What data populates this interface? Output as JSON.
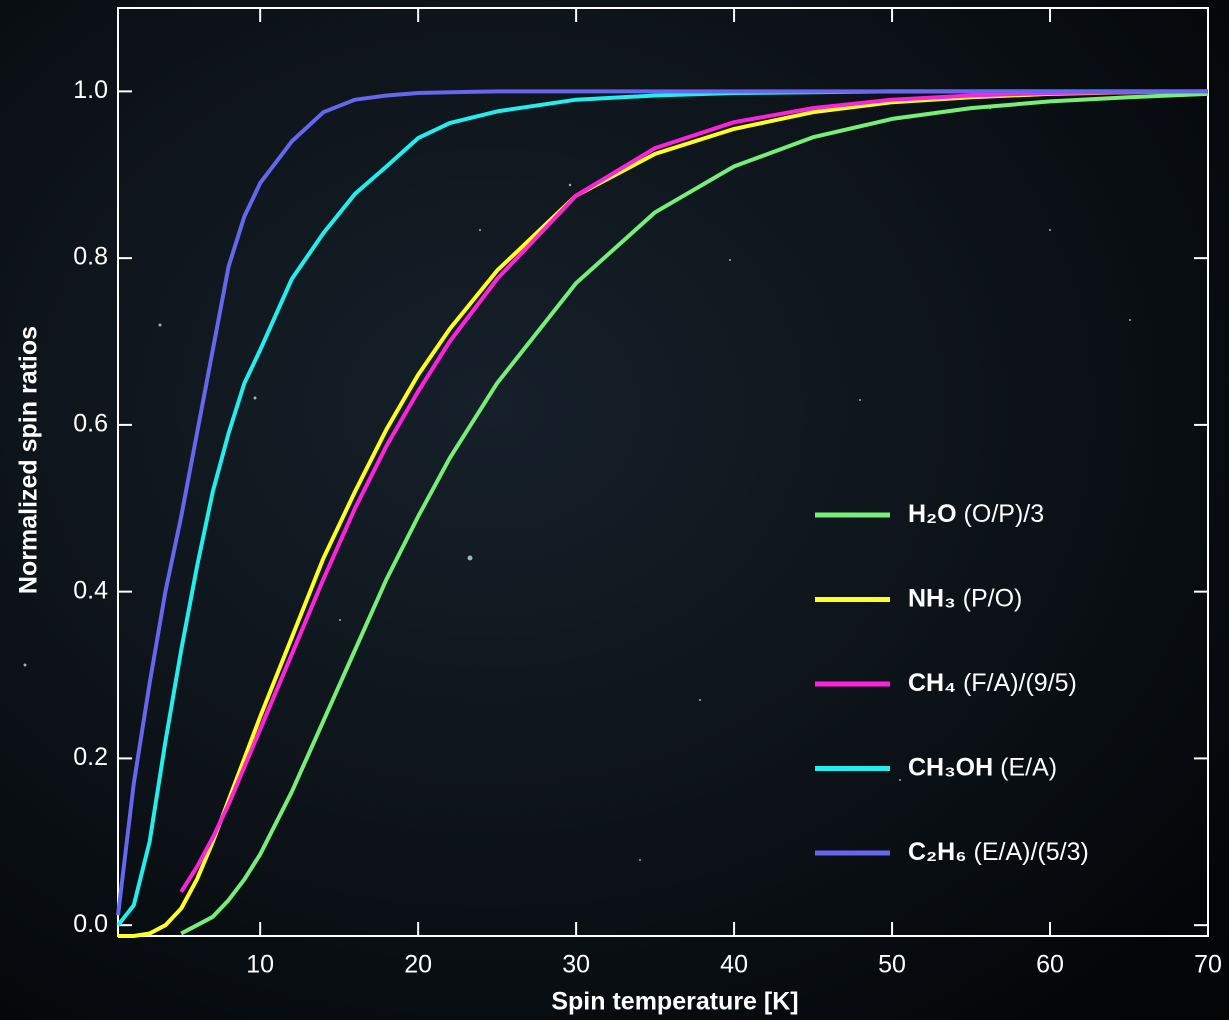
{
  "chart_data": {
    "type": "line",
    "xlabel": "Spin temperature [K]",
    "ylabel": "Normalized spin ratios",
    "x": [
      1,
      2,
      3,
      4,
      5,
      6,
      7,
      8,
      9,
      10,
      12,
      14,
      16,
      18,
      20,
      22,
      25,
      30,
      35,
      40,
      45,
      50,
      55,
      60,
      65,
      70
    ],
    "series": [
      {
        "name": "H₂O (O/P)/3",
        "color": "#77ee77",
        "values": [
          null,
          null,
          null,
          null,
          -0.01,
          0.0,
          0.01,
          0.03,
          0.055,
          0.085,
          0.16,
          0.245,
          0.33,
          0.415,
          0.49,
          0.56,
          0.65,
          0.77,
          0.855,
          0.91,
          0.945,
          0.967,
          0.98,
          0.988,
          0.993,
          0.997
        ]
      },
      {
        "name": "NH₃ (P/O)",
        "color": "#ffff22",
        "values": [
          -0.013,
          -0.013,
          -0.01,
          0.0,
          0.02,
          0.055,
          0.1,
          0.15,
          0.2,
          0.25,
          0.345,
          0.44,
          0.52,
          0.595,
          0.66,
          0.715,
          0.785,
          0.875,
          0.925,
          0.955,
          0.975,
          0.987,
          0.993,
          0.997,
          0.999,
          1.0
        ]
      },
      {
        "name": "CH₄ (F/A)/(9/5)",
        "color": "#ff22dd",
        "values": [
          null,
          null,
          null,
          null,
          0.04,
          0.07,
          0.105,
          0.145,
          0.19,
          0.235,
          0.325,
          0.415,
          0.5,
          0.575,
          0.64,
          0.7,
          0.775,
          0.875,
          0.932,
          0.963,
          0.98,
          0.99,
          0.995,
          0.998,
          0.999,
          1.0
        ]
      },
      {
        "name": "CH₃OH (E/A)",
        "color": "#22eeee",
        "values": [
          0.0,
          0.024,
          0.1,
          0.22,
          0.33,
          0.43,
          0.52,
          0.59,
          0.65,
          0.69,
          0.775,
          0.83,
          0.877,
          0.91,
          0.944,
          0.962,
          0.976,
          0.99,
          0.995,
          0.998,
          0.999,
          1.0,
          1.0,
          1.0,
          1.0,
          1.0
        ]
      },
      {
        "name": "C₂H₆ (E/A)/(5/3)",
        "color": "#6666ee",
        "values": [
          0.012,
          0.17,
          0.29,
          0.4,
          0.49,
          0.59,
          0.69,
          0.79,
          0.85,
          0.89,
          0.94,
          0.975,
          0.99,
          0.995,
          0.998,
          0.999,
          1.0,
          1.0,
          1.0,
          1.0,
          1.0,
          1.0,
          1.0,
          1.0,
          1.0,
          1.0
        ]
      }
    ],
    "xlim": [
      1,
      70
    ],
    "xticks": [
      10,
      20,
      30,
      40,
      50,
      60,
      70
    ],
    "ylim": [
      -0.013,
      1.1
    ],
    "yticks": [
      {
        "value": 0,
        "label": "0.0"
      },
      0.2,
      0.4,
      0.6,
      0.8,
      {
        "value": 1,
        "label": "1.0"
      }
    ],
    "legend": "lower right"
  }
}
